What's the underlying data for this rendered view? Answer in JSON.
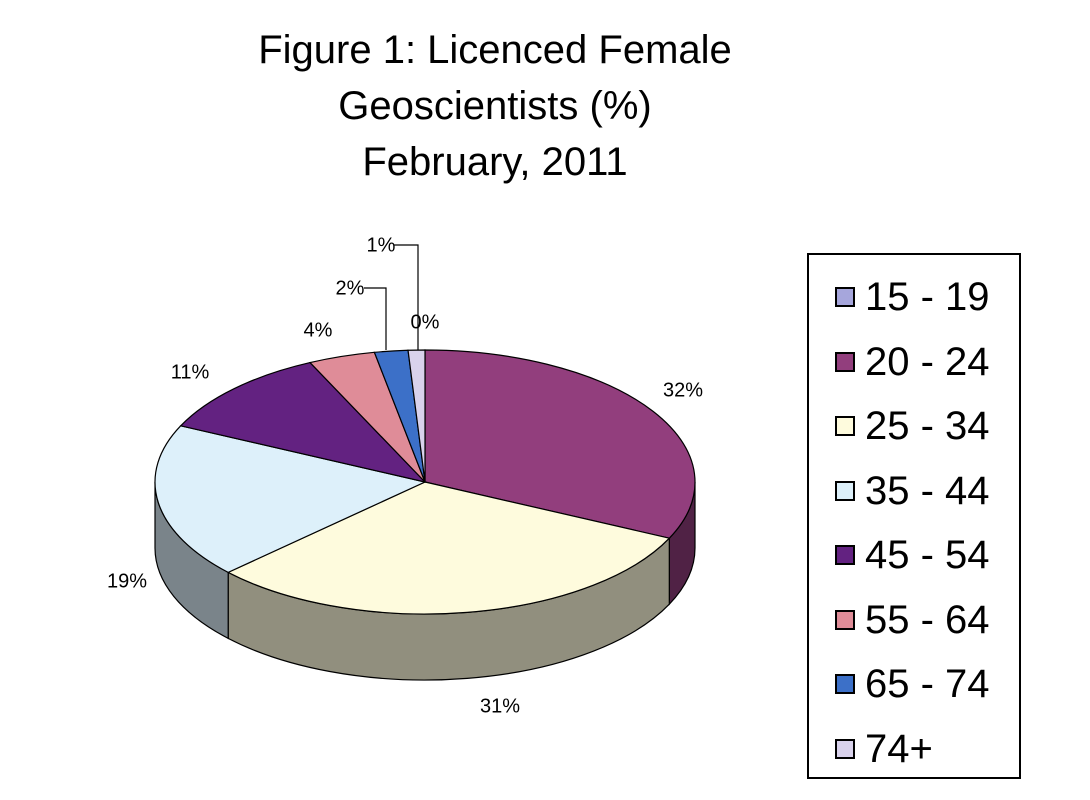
{
  "title_lines": [
    "Figure 1: Licenced Female",
    "Geoscientists (%)",
    "February, 2011"
  ],
  "chart_data": {
    "type": "pie",
    "title": "Figure 1: Licenced Female Geoscientists (%) February, 2011",
    "legend_position": "right",
    "categories": [
      "15 - 19",
      "20 - 24",
      "25 - 34",
      "35 - 44",
      "45 - 54",
      "55 - 64",
      "65 - 74",
      "74+"
    ],
    "values": [
      0,
      32,
      31,
      19,
      11,
      4,
      2,
      1
    ],
    "labels": [
      "0%",
      "32%",
      "31%",
      "19%",
      "11%",
      "4%",
      "2%",
      "1%"
    ],
    "colors": [
      "#a6a6dc",
      "#923e7d",
      "#fefbdd",
      "#ddf0fa",
      "#632281",
      "#df8c98",
      "#3c70c8",
      "#d9d2ec"
    ]
  }
}
